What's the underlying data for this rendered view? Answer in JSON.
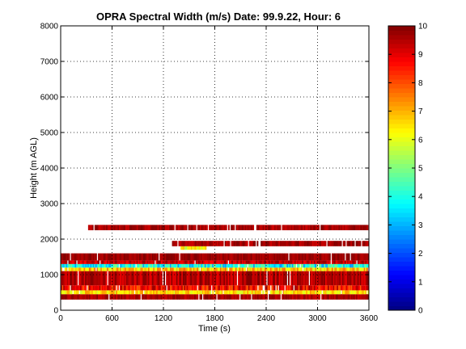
{
  "chart_data": {
    "type": "heatmap",
    "title": "OPRA Spectral Width (m/s)  Date: 99.9.22, Hour: 6",
    "xlabel": "Time (s)",
    "ylabel": "Height (m AGL)",
    "xlim": [
      0,
      3600
    ],
    "ylim": [
      0,
      8000
    ],
    "xticks": [
      "0",
      "600",
      "1200",
      "1800",
      "2400",
      "3000",
      "3600"
    ],
    "yticks": [
      "0",
      "1000",
      "2000",
      "3000",
      "4000",
      "5000",
      "6000",
      "7000",
      "8000"
    ],
    "grid": true,
    "colorbar": {
      "min": 0,
      "max": 10,
      "ticks": [
        "0",
        "1",
        "2",
        "3",
        "4",
        "5",
        "6",
        "7",
        "8",
        "9",
        "10"
      ],
      "colormap": "jet"
    },
    "layers": [
      {
        "y0": 300,
        "y1": 450,
        "x0": 0,
        "x1": 3600,
        "value": 9.6,
        "variation": 0.4
      },
      {
        "y0": 450,
        "y1": 560,
        "x0": 0,
        "x1": 3600,
        "value": 6.6,
        "variation": 0.8
      },
      {
        "y0": 560,
        "y1": 700,
        "x0": 0,
        "x1": 3600,
        "value": 8.8,
        "variation": 1.0
      },
      {
        "y0": 700,
        "y1": 1100,
        "x0": 0,
        "x1": 3600,
        "value": 9.5,
        "variation": 0.6
      },
      {
        "y0": 1100,
        "y1": 1200,
        "x0": 0,
        "x1": 3600,
        "value": 6.8,
        "variation": 1.0
      },
      {
        "y0": 1200,
        "y1": 1300,
        "x0": 0,
        "x1": 3600,
        "value": 3.8,
        "variation": 1.2
      },
      {
        "y0": 1300,
        "y1": 1400,
        "x0": 0,
        "x1": 3600,
        "value": 9.3,
        "variation": 0.6
      },
      {
        "y0": 1400,
        "y1": 1600,
        "x0": 0,
        "x1": 3600,
        "value": 9.7,
        "variation": 0.3
      },
      {
        "y0": 1700,
        "y1": 1800,
        "x0": 1400,
        "x1": 1700,
        "value": 6.3,
        "variation": 0.8
      },
      {
        "y0": 1800,
        "y1": 1950,
        "x0": 1300,
        "x1": 3600,
        "value": 9.6,
        "variation": 0.4
      },
      {
        "y0": 2250,
        "y1": 2400,
        "x0": 320,
        "x1": 3600,
        "value": 9.6,
        "variation": 0.4
      }
    ]
  }
}
